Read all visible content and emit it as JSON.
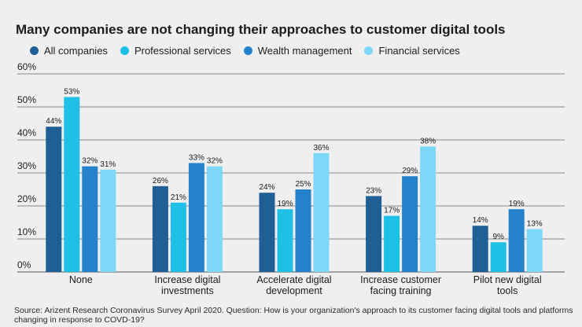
{
  "chart_data": {
    "type": "bar",
    "title": "Many companies are not changing their approaches to customer digital tools",
    "categories": [
      [
        "None"
      ],
      [
        "Increase digital",
        "investments"
      ],
      [
        "Accelerate digital",
        "development"
      ],
      [
        "Increase customer",
        "facing training"
      ],
      [
        "Pilot new digital",
        "tools"
      ]
    ],
    "series": [
      {
        "name": "All companies",
        "color": "#1f5f96",
        "values": [
          44,
          26,
          24,
          23,
          14
        ]
      },
      {
        "name": "Professional services",
        "color": "#1ec0e6",
        "values": [
          53,
          21,
          19,
          17,
          9
        ]
      },
      {
        "name": "Wealth management",
        "color": "#2481cc",
        "values": [
          32,
          33,
          25,
          29,
          19
        ]
      },
      {
        "name": "Financial services",
        "color": "#7dd8f7",
        "values": [
          31,
          32,
          36,
          38,
          13
        ]
      }
    ],
    "ylim": [
      0,
      60
    ],
    "yticks": [
      "0%",
      "10%",
      "20%",
      "30%",
      "40%",
      "50%",
      "60%"
    ],
    "value_suffix": "%",
    "xlabel": "",
    "ylabel": ""
  },
  "source": "Source: Arizent Research Coronavirus Survey April 2020. Question: How is your organization's approach to its customer facing digital tools and platforms changing in response to COVD-19?"
}
